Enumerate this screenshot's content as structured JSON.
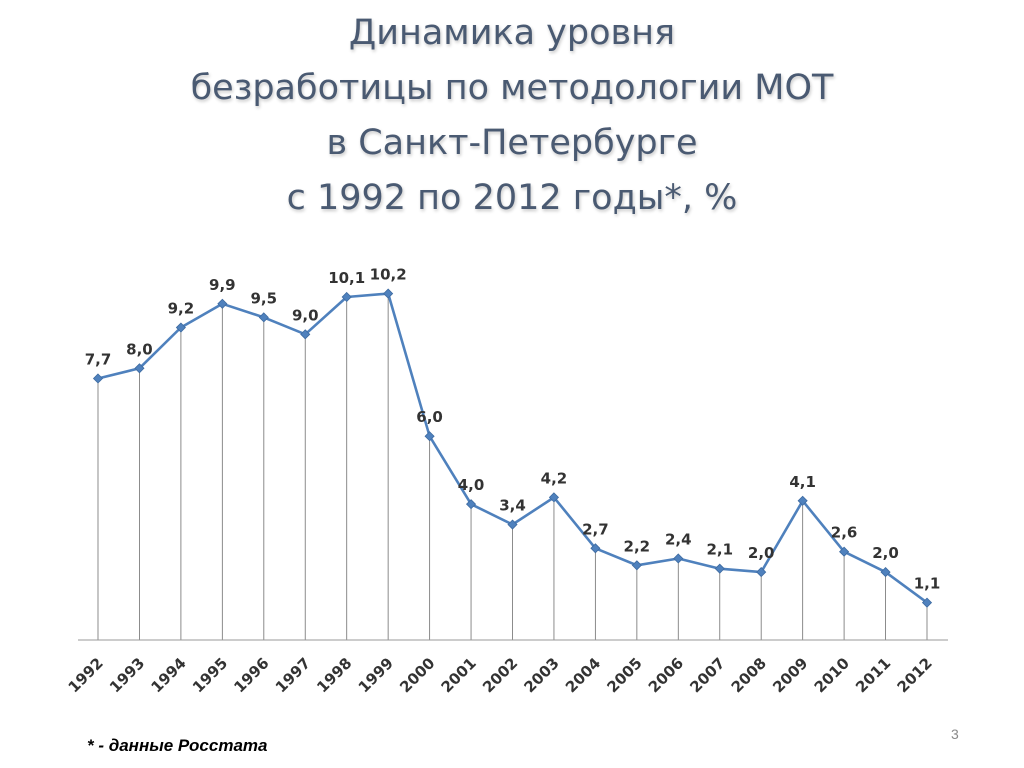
{
  "title": {
    "line1": "Динамика уровня",
    "line2": "безработицы по методологии МОТ",
    "line3": "в Санкт-Петербурге",
    "line4": "с 1992 по 2012 годы*, %"
  },
  "footnote": "* - данные Росстата",
  "slide_number": "3",
  "colors": {
    "title": "#4a5a72",
    "series_line": "#4f81bd",
    "drop_lines": "#7f7f7f",
    "axis": "#999999",
    "labels": "#333333"
  },
  "chart_data": {
    "type": "line",
    "categories": [
      "1992",
      "1993",
      "1994",
      "1995",
      "1996",
      "1997",
      "1998",
      "1999",
      "2000",
      "2001",
      "2002",
      "2003",
      "2004",
      "2005",
      "2006",
      "2007",
      "2008",
      "2009",
      "2010",
      "2011",
      "2012"
    ],
    "series": [
      {
        "values": [
          7.7,
          8.0,
          9.2,
          9.9,
          9.5,
          9.0,
          10.1,
          10.2,
          6.0,
          4.0,
          3.4,
          4.2,
          2.7,
          2.2,
          2.4,
          2.1,
          2.0,
          4.1,
          2.6,
          2.0,
          1.1
        ],
        "value_labels": [
          "7,7",
          "8,0",
          "9,2",
          "9,9",
          "9,5",
          "9,0",
          "10,1",
          "10,2",
          "6,0",
          "4,0",
          "3,4",
          "4,2",
          "2,7",
          "2,2",
          "2,4",
          "2,1",
          "2,0",
          "4,1",
          "2,6",
          "2,0",
          "1,1"
        ]
      }
    ],
    "ylim": [
      0,
      10.6
    ],
    "y_axis_visible": false,
    "drop_lines": true,
    "grid": false,
    "legend": "none",
    "title": "",
    "xlabel": "",
    "ylabel": ""
  }
}
